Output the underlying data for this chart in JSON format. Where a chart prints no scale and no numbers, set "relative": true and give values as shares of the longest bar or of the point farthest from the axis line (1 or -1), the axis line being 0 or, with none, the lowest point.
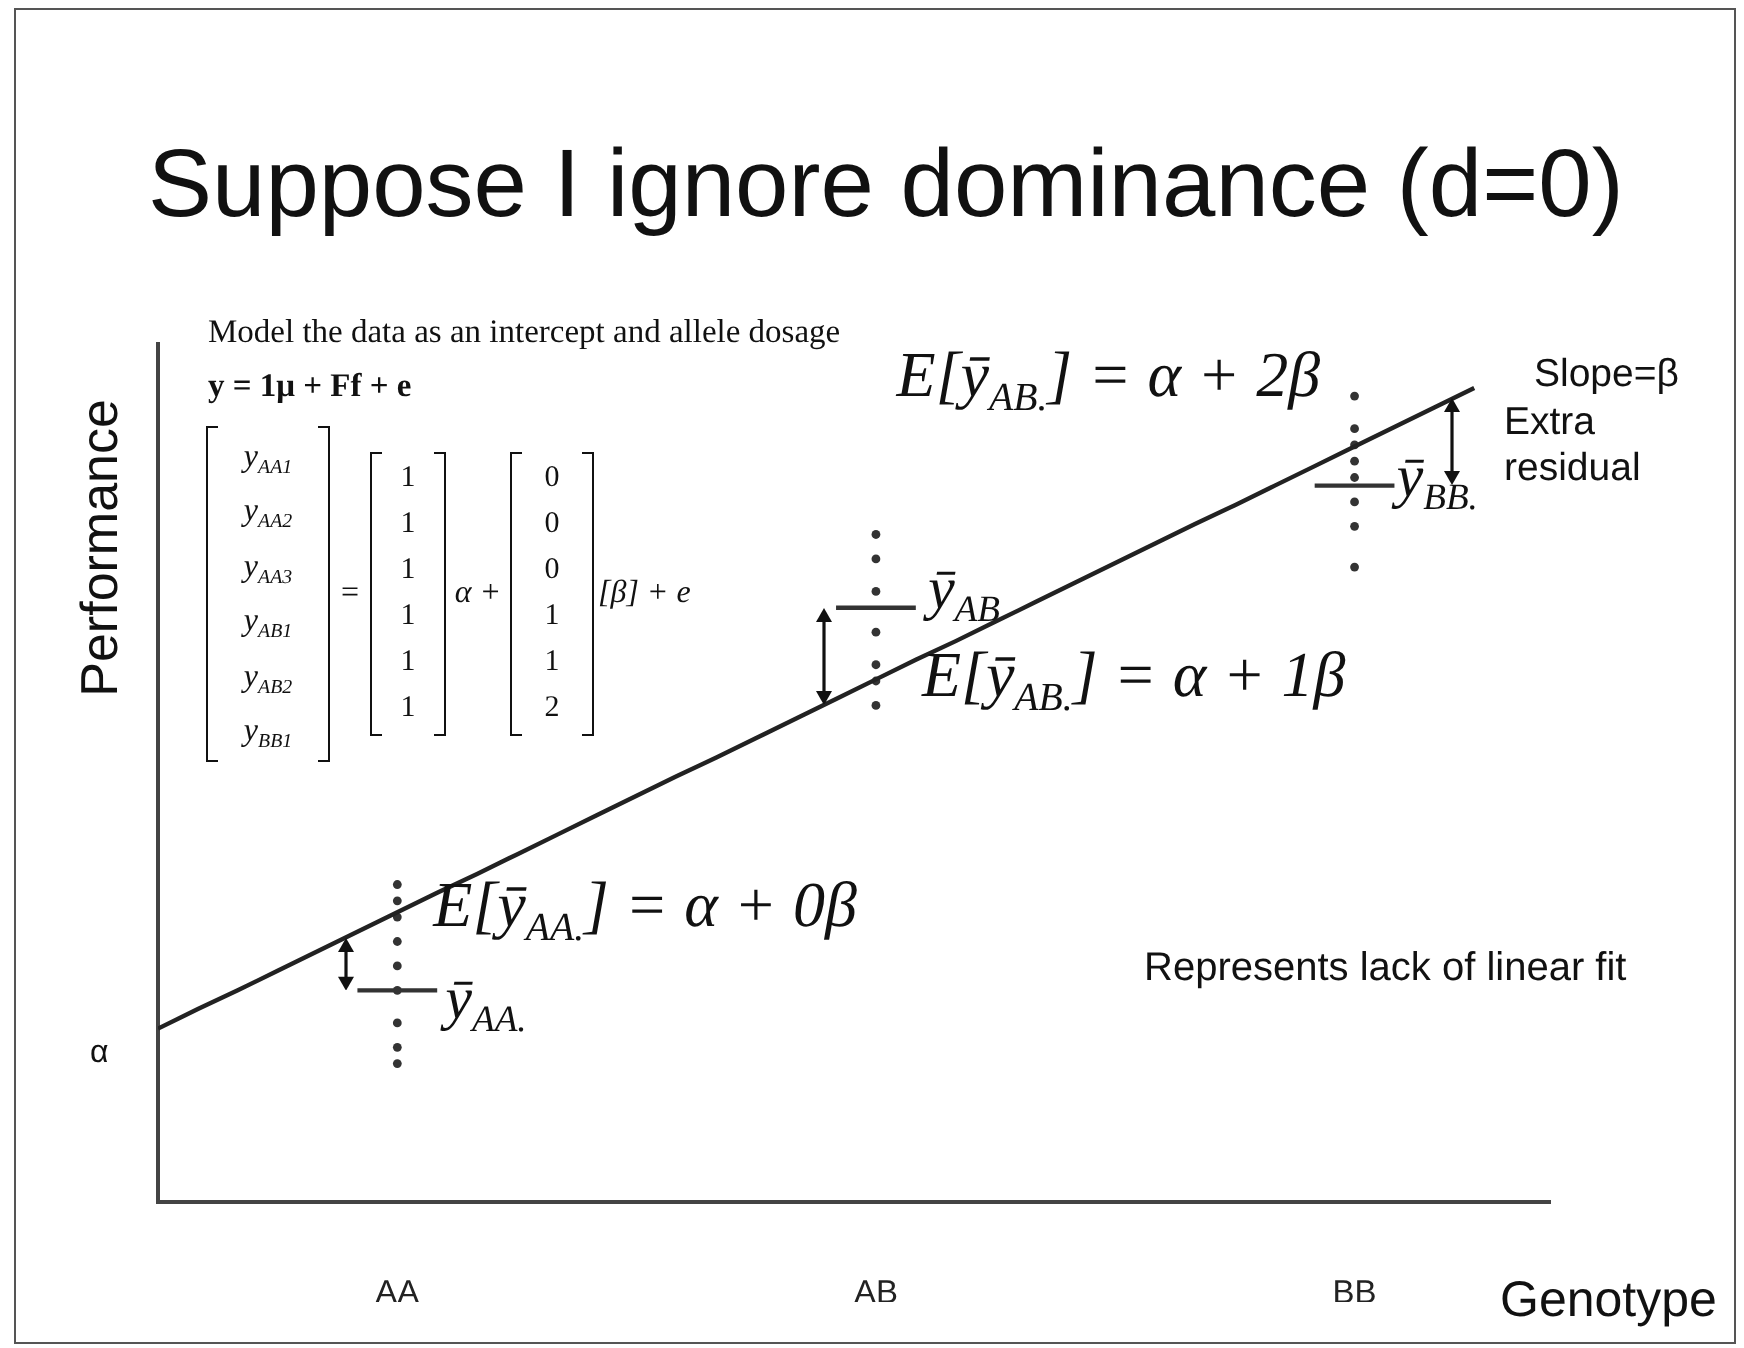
{
  "chart_data": {
    "type": "scatter",
    "title": "Suppose I ignore dominance (d=0)",
    "xlabel": "Genotype",
    "ylabel": "Performance",
    "relative": true,
    "categories": [
      null,
      null,
      null,
      null,
      null,
      null,
      "AA",
      null,
      null,
      null,
      null,
      null,
      null,
      null,
      null,
      null,
      null,
      null,
      "AB",
      null,
      null,
      null,
      null,
      null,
      null,
      null,
      null,
      null,
      null,
      null,
      "BB",
      null,
      null,
      null,
      null
    ],
    "series": [
      {
        "type": "line",
        "values": [
          0.213,
          0.237,
          0.26,
          0.284,
          0.308,
          0.332,
          0.356,
          0.38,
          0.403,
          0.427,
          0.451,
          0.475,
          0.499,
          0.523,
          0.546,
          0.57,
          0.594,
          0.618,
          0.642,
          0.666,
          0.689,
          0.713,
          0.737,
          0.761,
          0.785,
          0.809,
          0.833,
          0.856,
          0.88,
          0.904,
          0.928,
          0.952,
          0.976,
          1,
          null
        ],
        "color": "#222222",
        "marker": "none"
      },
      {
        "x": [
          "AA",
          "AA",
          "AA",
          "AA",
          "AA",
          "AA",
          "AA",
          "AA",
          "AA",
          "AB",
          "AB",
          "AB",
          "AB",
          "AB",
          "AB",
          "AB",
          "BB",
          "BB",
          "BB",
          "BB",
          "BB",
          "BB",
          "BB",
          "BB"
        ],
        "values": [
          0.39,
          0.37,
          0.35,
          0.32,
          0.29,
          0.26,
          0.22,
          0.19,
          0.17,
          0.82,
          0.79,
          0.75,
          0.7,
          0.66,
          0.64,
          0.61,
          0.99,
          0.95,
          0.93,
          0.91,
          0.89,
          0.86,
          0.83,
          0.78
        ],
        "color": "#333333",
        "marker": "circle"
      },
      {
        "type": "line",
        "values": [
          null,
          null,
          null,
          null,
          null,
          0.26,
          0.26,
          0.26,
          null,
          null,
          null,
          null,
          null,
          null,
          null,
          null,
          null,
          0.73,
          0.73,
          0.73,
          null,
          null,
          null,
          null,
          null,
          null,
          null,
          null,
          null,
          0.88,
          0.88,
          0.88,
          null,
          null,
          null
        ],
        "color": "#333333",
        "marker": "none"
      }
    ],
    "annotations": [
      "Model the data as an intercept and allele dosage",
      "y = 1μ + Ff + e",
      "y$_{AA1}$\ny$_{AA2}$\ny$_{AA3}$\ny$_{AB1}$\ny$_{AB2}$\ny$_{BB1}$",
      "=",
      "1\n1\n1\n1\n1\n1",
      "α +",
      "0\n0\n0\n1\n1\n2",
      "[β] + e",
      {
        "text": "E[ȳ$_{AB.}$] = α + 2β",
        "x": "BB",
        "y": 0.93
      },
      {
        "text": "E[ȳ$_{AB.}$] = α + 1β",
        "x": "AB",
        "y": 0.64
      },
      {
        "text": "E[ȳ$_{AA.}$] = α + 0β",
        "x": "AA",
        "y": 0.36
      },
      {
        "text": "ȳ$_{AA.}$",
        "x": "AA",
        "y": 0.26
      },
      {
        "text": "ȳ$_{AB}$",
        "x": "AB",
        "y": 0.73
      },
      {
        "text": "ȳ$_{BB.}$",
        "x": "BB",
        "y": 0.88
      },
      "Slope=β",
      "Extra residual",
      "Represents lack of linear fit",
      "α"
    ]
  }
}
